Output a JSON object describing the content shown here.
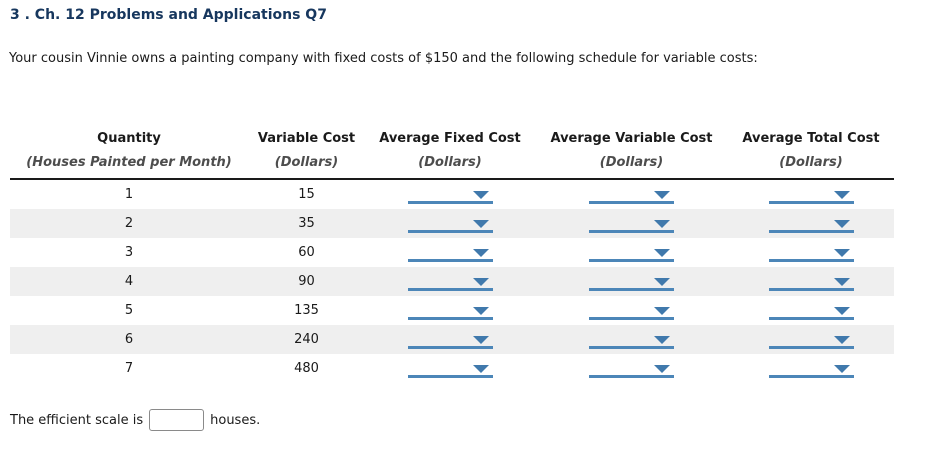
{
  "page": {
    "title": "3 . Ch. 12 Problems and Applications Q7",
    "intro": "Your cousin Vinnie owns a painting company with fixed costs of $150 and the following schedule for variable costs:"
  },
  "table": {
    "columns": [
      {
        "label": "Quantity",
        "sub": "(Houses Painted per Month)"
      },
      {
        "label": "Variable Cost",
        "sub": "(Dollars)"
      },
      {
        "label": "Average Fixed Cost",
        "sub": "(Dollars)"
      },
      {
        "label": "Average Variable Cost",
        "sub": "(Dollars)"
      },
      {
        "label": "Average Total Cost",
        "sub": "(Dollars)"
      }
    ],
    "rows": [
      {
        "quantity": "1",
        "variable_cost": "15"
      },
      {
        "quantity": "2",
        "variable_cost": "35"
      },
      {
        "quantity": "3",
        "variable_cost": "60"
      },
      {
        "quantity": "4",
        "variable_cost": "90"
      },
      {
        "quantity": "5",
        "variable_cost": "135"
      },
      {
        "quantity": "6",
        "variable_cost": "240"
      },
      {
        "quantity": "7",
        "variable_cost": "480"
      }
    ],
    "dropdown_selected_value": ""
  },
  "footer": {
    "text_before_input": "The efficient scale is",
    "input_value": "",
    "text_after_input": "houses."
  },
  "colors": {
    "title_blue": "#17375E",
    "dropdown_blue": "#4C86B8",
    "dropdown_arrow_blue": "#4079AC",
    "row_stripe": "#EFEFEF",
    "header_sub_gray": "#4D4D4D",
    "header_rule_black": "#1A1A1A"
  }
}
